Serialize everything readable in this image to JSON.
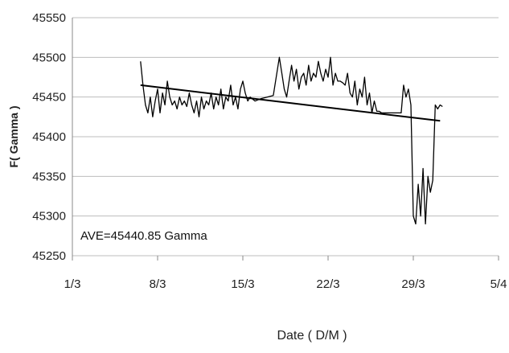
{
  "chart_data": {
    "type": "line",
    "title": "",
    "xlabel": "Date ( D/M )",
    "ylabel": "F( Gamma )",
    "xlim": [
      0,
      34
    ],
    "ylim": [
      45250,
      45550
    ],
    "x_ticks": [
      {
        "label": "1/3",
        "value": 0
      },
      {
        "label": "8/3",
        "value": 7
      },
      {
        "label": "15/3",
        "value": 14
      },
      {
        "label": "22/3",
        "value": 21
      },
      {
        "label": "29/3",
        "value": 28
      },
      {
        "label": "5/4",
        "value": 35
      }
    ],
    "y_ticks": [
      45250,
      45300,
      45350,
      45400,
      45450,
      45500,
      45550
    ],
    "grid": "horizontal",
    "annotation": "AVE=45440.85 Gamma",
    "series": [
      {
        "kind": "measured",
        "color": "#000000",
        "x": [
          5.6,
          5.8,
          6.0,
          6.2,
          6.4,
          6.6,
          6.8,
          7.0,
          7.2,
          7.4,
          7.6,
          7.8,
          8.0,
          8.2,
          8.4,
          8.6,
          8.8,
          9.0,
          9.2,
          9.4,
          9.6,
          9.8,
          10.0,
          10.2,
          10.4,
          10.6,
          10.8,
          11.0,
          11.2,
          11.4,
          11.6,
          11.8,
          12.0,
          12.2,
          12.4,
          12.6,
          12.8,
          13.0,
          13.2,
          13.4,
          13.6,
          13.8,
          14.0,
          14.2,
          14.4,
          14.6,
          15.0,
          15.5,
          16.0,
          16.5,
          17.0,
          17.2,
          17.4,
          17.6,
          17.8,
          18.0,
          18.2,
          18.4,
          18.6,
          18.8,
          19.0,
          19.2,
          19.4,
          19.6,
          19.8,
          20.0,
          20.2,
          20.4,
          20.6,
          20.8,
          21.0,
          21.2,
          21.4,
          21.6,
          21.8,
          22.0,
          22.2,
          22.4,
          22.6,
          22.8,
          23.0,
          23.2,
          23.4,
          23.6,
          23.8,
          24.0,
          24.2,
          24.4,
          24.6,
          24.8,
          25.0,
          25.2,
          25.4,
          25.6,
          25.8,
          26.0,
          26.5,
          27.0,
          27.2,
          27.4,
          27.6,
          27.8,
          28.0,
          28.2,
          28.4,
          28.6,
          28.8,
          29.0,
          29.2,
          29.4,
          29.6,
          29.8,
          30.0,
          30.2,
          30.4
        ],
        "y": [
          45495,
          45465,
          45440,
          45430,
          45450,
          45425,
          45445,
          45460,
          45430,
          45455,
          45440,
          45470,
          45450,
          45440,
          45445,
          45435,
          45450,
          45440,
          45445,
          45438,
          45455,
          45440,
          45430,
          45445,
          45425,
          45450,
          45435,
          45445,
          45440,
          45455,
          45435,
          45450,
          45440,
          45460,
          45435,
          45450,
          45445,
          45465,
          45440,
          45450,
          45435,
          45460,
          45470,
          45455,
          45445,
          45450,
          45445,
          45448,
          45450,
          45452,
          45500,
          45480,
          45460,
          45450,
          45470,
          45490,
          45470,
          45485,
          45460,
          45475,
          45480,
          45465,
          45490,
          45470,
          45480,
          45475,
          45495,
          45480,
          45470,
          45485,
          45475,
          45500,
          45465,
          45480,
          45470,
          45470,
          45468,
          45465,
          45480,
          45455,
          45450,
          45470,
          45440,
          45460,
          45450,
          45475,
          45440,
          45455,
          45430,
          45445,
          45432,
          45432,
          45430,
          45430,
          45430,
          45430,
          45430,
          45430,
          45465,
          45450,
          45460,
          45440,
          45300,
          45290,
          45340,
          45300,
          45360,
          45290,
          45350,
          45330,
          45345,
          45440,
          45435,
          45440,
          45438
        ]
      },
      {
        "kind": "trend",
        "color": "#000000",
        "x": [
          5.6,
          30.2
        ],
        "y": [
          45465,
          45420
        ]
      }
    ]
  }
}
